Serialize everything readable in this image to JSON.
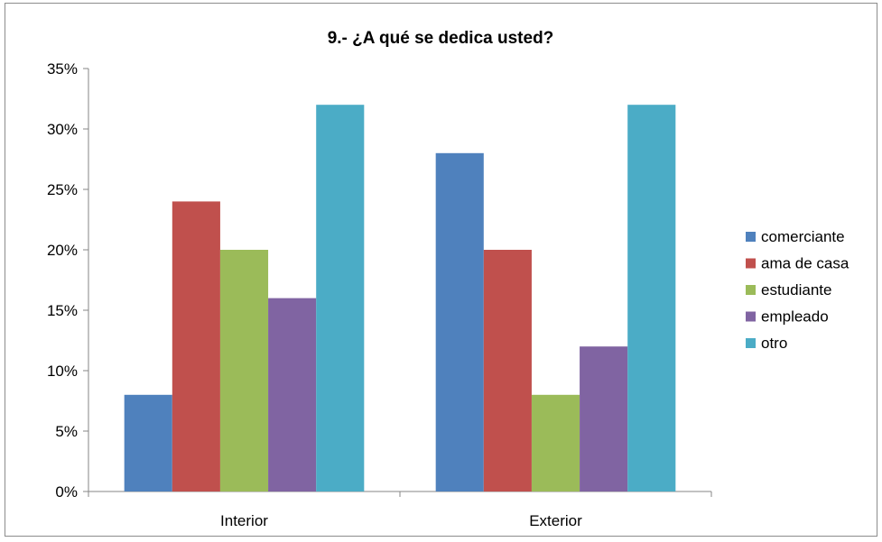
{
  "chart_data": {
    "type": "bar",
    "title": "9.- ¿A qué se dedica usted?",
    "categories": [
      "Interior",
      "Exterior"
    ],
    "series": [
      {
        "name": "comerciante",
        "color": "#4f81bd",
        "values": [
          8,
          28
        ]
      },
      {
        "name": "ama de casa",
        "color": "#c0504d",
        "values": [
          24,
          20
        ]
      },
      {
        "name": "estudiante",
        "color": "#9bbb59",
        "values": [
          20,
          8
        ]
      },
      {
        "name": "empleado",
        "color": "#8064a2",
        "values": [
          16,
          12
        ]
      },
      {
        "name": "otro",
        "color": "#4bacc6",
        "values": [
          32,
          32
        ]
      }
    ],
    "ylim": [
      0,
      35
    ],
    "yticks": [
      "0%",
      "5%",
      "10%",
      "15%",
      "20%",
      "25%",
      "30%",
      "35%"
    ],
    "xlabel": "",
    "ylabel": "",
    "grid": false,
    "legend": "right"
  }
}
